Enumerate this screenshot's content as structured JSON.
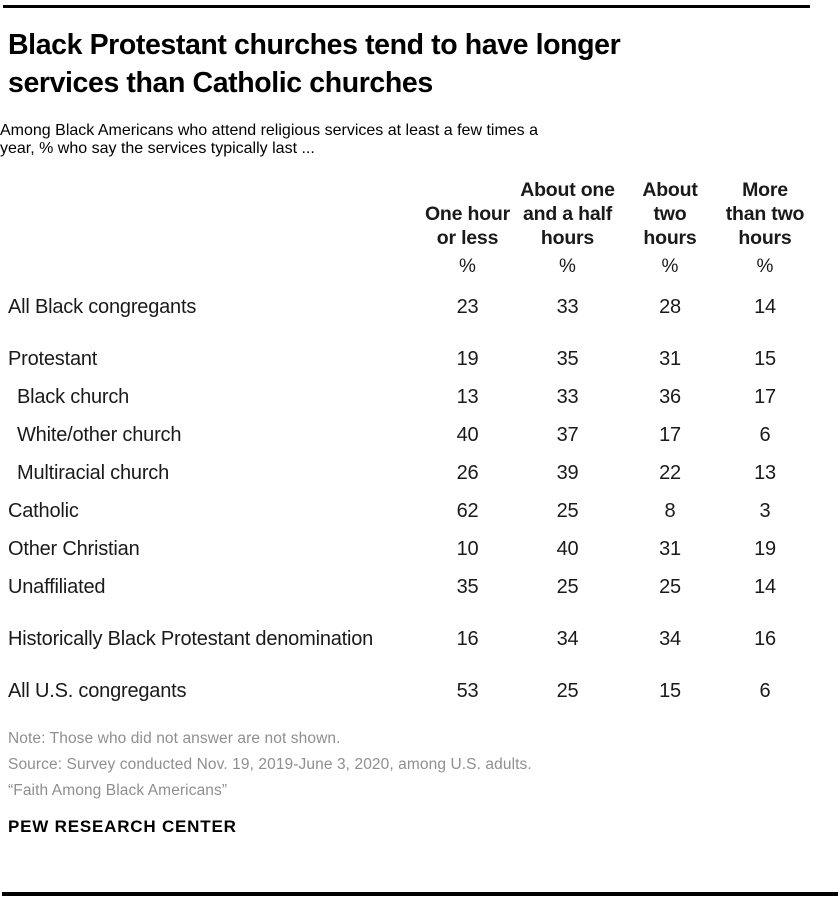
{
  "chart_data": {
    "type": "table",
    "title": "Black Protestant churches tend to have longer services than Catholic churches",
    "subtitle": "Among Black Americans who attend religious services at least a few times a year, % who say the services typically last ...",
    "unit": "%",
    "columns": [
      "One hour or less",
      "About one and a half hours",
      "About two hours",
      "More than two hours"
    ],
    "rows": [
      {
        "label": "All Black congregants",
        "values": [
          23,
          33,
          28,
          14
        ]
      },
      {
        "label": "Protestant",
        "values": [
          19,
          35,
          31,
          15
        ]
      },
      {
        "label": "Black church",
        "values": [
          13,
          33,
          36,
          17
        ]
      },
      {
        "label": "White/other church",
        "values": [
          40,
          37,
          17,
          6
        ]
      },
      {
        "label": "Multiracial church",
        "values": [
          26,
          39,
          22,
          13
        ]
      },
      {
        "label": "Catholic",
        "values": [
          62,
          25,
          8,
          3
        ]
      },
      {
        "label": "Other Christian",
        "values": [
          10,
          40,
          31,
          19
        ]
      },
      {
        "label": "Unaffiliated",
        "values": [
          35,
          25,
          25,
          14
        ]
      },
      {
        "label": "Historically Black Protestant denomination",
        "values": [
          16,
          34,
          34,
          16
        ]
      },
      {
        "label": "All U.S. congregants",
        "values": [
          53,
          25,
          15,
          6
        ]
      }
    ]
  },
  "display": {
    "title_lines": [
      "Black Protestant churches tend to have longer",
      "services than Catholic churches"
    ],
    "subtitle_lines": [
      "Among Black Americans who attend religious services at least a few times a",
      "year, % who say the services typically last ..."
    ],
    "column_header_lines": [
      [
        "One hour",
        "or less"
      ],
      [
        "About one",
        "and a half",
        "hours"
      ],
      [
        "About",
        "two",
        "hours"
      ],
      [
        "More",
        "than two",
        "hours"
      ]
    ],
    "percent_sign": "%"
  },
  "footer": {
    "note": "Note: Those who did not answer are not shown.",
    "source": "Source: Survey conducted Nov. 19, 2019-June 3, 2020, among U.S. adults.",
    "attribution": "“Faith Among Black Americans”",
    "brand": "PEW RESEARCH CENTER"
  },
  "colors": {
    "title": "#000000",
    "subtitle": "#58585b",
    "table_text": "#1a1a1a",
    "footer_text": "#8f8f8f",
    "rule": "#000000"
  }
}
